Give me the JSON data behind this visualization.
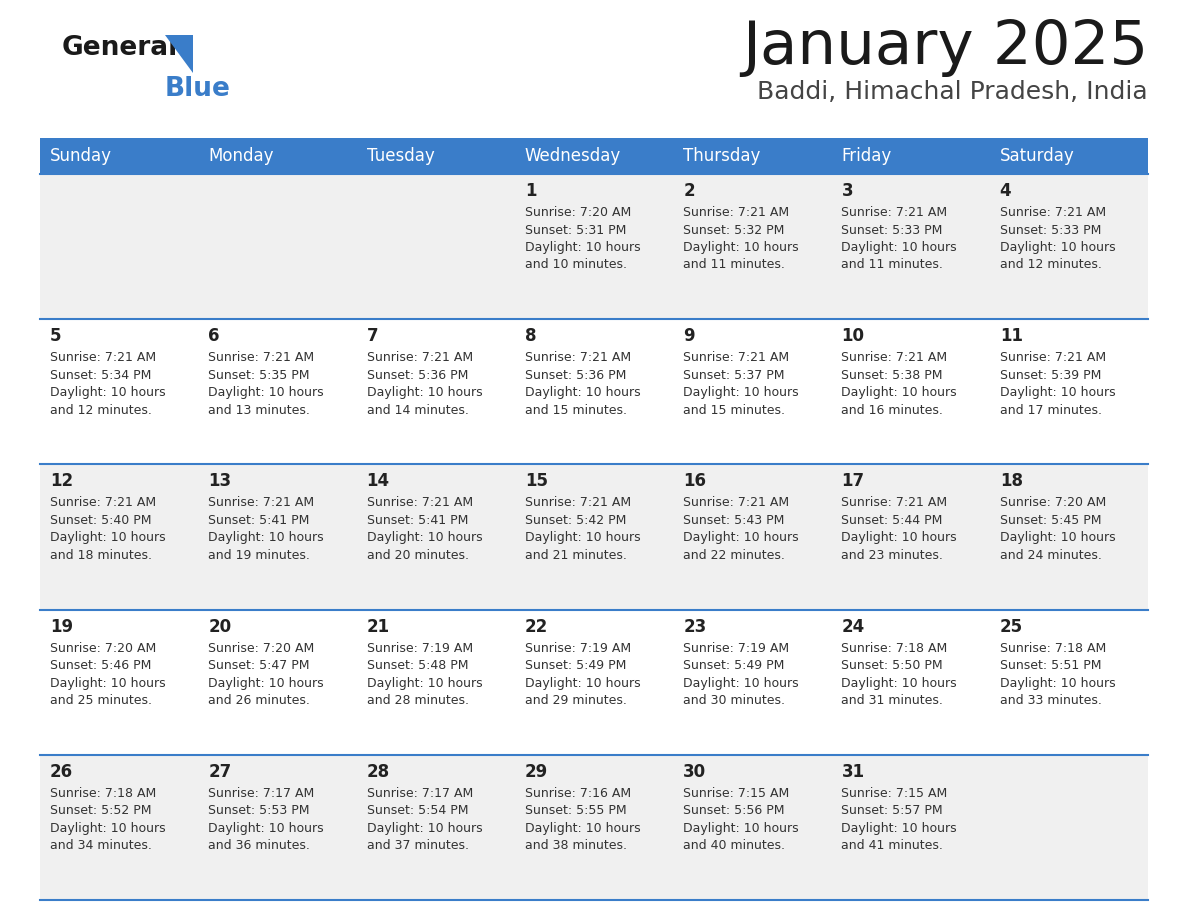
{
  "title": "January 2025",
  "subtitle": "Baddi, Himachal Pradesh, India",
  "header_bg": "#3A7DC9",
  "header_text_color": "#FFFFFF",
  "day_names": [
    "Sunday",
    "Monday",
    "Tuesday",
    "Wednesday",
    "Thursday",
    "Friday",
    "Saturday"
  ],
  "row_bg_odd": "#F0F0F0",
  "row_bg_even": "#FFFFFF",
  "cell_border_color": "#3A7DC9",
  "day_number_color": "#222222",
  "text_color": "#333333",
  "calendar": [
    [
      {
        "day": null,
        "sunrise": null,
        "sunset": null,
        "daylight": null
      },
      {
        "day": null,
        "sunrise": null,
        "sunset": null,
        "daylight": null
      },
      {
        "day": null,
        "sunrise": null,
        "sunset": null,
        "daylight": null
      },
      {
        "day": 1,
        "sunrise": "7:20 AM",
        "sunset": "5:31 PM",
        "daylight": "10 hours\nand 10 minutes."
      },
      {
        "day": 2,
        "sunrise": "7:21 AM",
        "sunset": "5:32 PM",
        "daylight": "10 hours\nand 11 minutes."
      },
      {
        "day": 3,
        "sunrise": "7:21 AM",
        "sunset": "5:33 PM",
        "daylight": "10 hours\nand 11 minutes."
      },
      {
        "day": 4,
        "sunrise": "7:21 AM",
        "sunset": "5:33 PM",
        "daylight": "10 hours\nand 12 minutes."
      }
    ],
    [
      {
        "day": 5,
        "sunrise": "7:21 AM",
        "sunset": "5:34 PM",
        "daylight": "10 hours\nand 12 minutes."
      },
      {
        "day": 6,
        "sunrise": "7:21 AM",
        "sunset": "5:35 PM",
        "daylight": "10 hours\nand 13 minutes."
      },
      {
        "day": 7,
        "sunrise": "7:21 AM",
        "sunset": "5:36 PM",
        "daylight": "10 hours\nand 14 minutes."
      },
      {
        "day": 8,
        "sunrise": "7:21 AM",
        "sunset": "5:36 PM",
        "daylight": "10 hours\nand 15 minutes."
      },
      {
        "day": 9,
        "sunrise": "7:21 AM",
        "sunset": "5:37 PM",
        "daylight": "10 hours\nand 15 minutes."
      },
      {
        "day": 10,
        "sunrise": "7:21 AM",
        "sunset": "5:38 PM",
        "daylight": "10 hours\nand 16 minutes."
      },
      {
        "day": 11,
        "sunrise": "7:21 AM",
        "sunset": "5:39 PM",
        "daylight": "10 hours\nand 17 minutes."
      }
    ],
    [
      {
        "day": 12,
        "sunrise": "7:21 AM",
        "sunset": "5:40 PM",
        "daylight": "10 hours\nand 18 minutes."
      },
      {
        "day": 13,
        "sunrise": "7:21 AM",
        "sunset": "5:41 PM",
        "daylight": "10 hours\nand 19 minutes."
      },
      {
        "day": 14,
        "sunrise": "7:21 AM",
        "sunset": "5:41 PM",
        "daylight": "10 hours\nand 20 minutes."
      },
      {
        "day": 15,
        "sunrise": "7:21 AM",
        "sunset": "5:42 PM",
        "daylight": "10 hours\nand 21 minutes."
      },
      {
        "day": 16,
        "sunrise": "7:21 AM",
        "sunset": "5:43 PM",
        "daylight": "10 hours\nand 22 minutes."
      },
      {
        "day": 17,
        "sunrise": "7:21 AM",
        "sunset": "5:44 PM",
        "daylight": "10 hours\nand 23 minutes."
      },
      {
        "day": 18,
        "sunrise": "7:20 AM",
        "sunset": "5:45 PM",
        "daylight": "10 hours\nand 24 minutes."
      }
    ],
    [
      {
        "day": 19,
        "sunrise": "7:20 AM",
        "sunset": "5:46 PM",
        "daylight": "10 hours\nand 25 minutes."
      },
      {
        "day": 20,
        "sunrise": "7:20 AM",
        "sunset": "5:47 PM",
        "daylight": "10 hours\nand 26 minutes."
      },
      {
        "day": 21,
        "sunrise": "7:19 AM",
        "sunset": "5:48 PM",
        "daylight": "10 hours\nand 28 minutes."
      },
      {
        "day": 22,
        "sunrise": "7:19 AM",
        "sunset": "5:49 PM",
        "daylight": "10 hours\nand 29 minutes."
      },
      {
        "day": 23,
        "sunrise": "7:19 AM",
        "sunset": "5:49 PM",
        "daylight": "10 hours\nand 30 minutes."
      },
      {
        "day": 24,
        "sunrise": "7:18 AM",
        "sunset": "5:50 PM",
        "daylight": "10 hours\nand 31 minutes."
      },
      {
        "day": 25,
        "sunrise": "7:18 AM",
        "sunset": "5:51 PM",
        "daylight": "10 hours\nand 33 minutes."
      }
    ],
    [
      {
        "day": 26,
        "sunrise": "7:18 AM",
        "sunset": "5:52 PM",
        "daylight": "10 hours\nand 34 minutes."
      },
      {
        "day": 27,
        "sunrise": "7:17 AM",
        "sunset": "5:53 PM",
        "daylight": "10 hours\nand 36 minutes."
      },
      {
        "day": 28,
        "sunrise": "7:17 AM",
        "sunset": "5:54 PM",
        "daylight": "10 hours\nand 37 minutes."
      },
      {
        "day": 29,
        "sunrise": "7:16 AM",
        "sunset": "5:55 PM",
        "daylight": "10 hours\nand 38 minutes."
      },
      {
        "day": 30,
        "sunrise": "7:15 AM",
        "sunset": "5:56 PM",
        "daylight": "10 hours\nand 40 minutes."
      },
      {
        "day": 31,
        "sunrise": "7:15 AM",
        "sunset": "5:57 PM",
        "daylight": "10 hours\nand 41 minutes."
      },
      {
        "day": null,
        "sunrise": null,
        "sunset": null,
        "daylight": null
      }
    ]
  ]
}
